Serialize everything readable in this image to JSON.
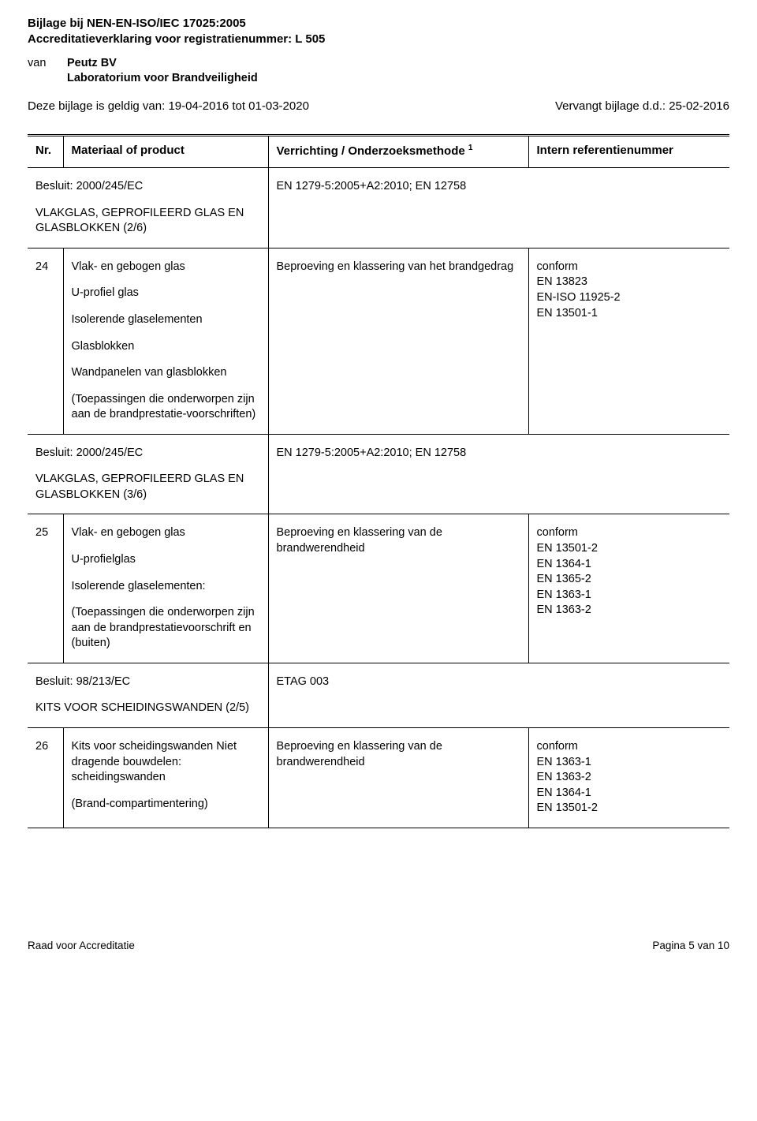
{
  "header": {
    "line1": "Bijlage bij NEN-EN-ISO/IEC 17025:2005",
    "line2": "Accreditatieverklaring voor registratienummer: L 505",
    "van_label": "van",
    "company": "Peutz BV",
    "lab": "Laboratorium voor Brandveiligheid",
    "validity": "Deze bijlage is geldig van: 19-04-2016 tot 01-03-2020",
    "replaces": "Vervangt bijlage d.d.: 25-02-2016"
  },
  "table": {
    "headers": {
      "nr": "Nr.",
      "material": "Materiaal of product",
      "method": "Verrichting / Onderzoeksmethode",
      "method_sup": "1",
      "ref": "Intern referentienummer"
    },
    "section1": {
      "left_line1": "Besluit: 2000/245/EC",
      "left_line2": "VLAKGLAS, GEPROFILEERD GLAS EN GLASBLOKKEN (2/6)",
      "right": "EN 1279-5:2005+A2:2010; EN 12758"
    },
    "row24": {
      "nr": "24",
      "mat1": "Vlak- en gebogen glas",
      "mat2": "U-profiel glas",
      "mat3": "Isolerende glaselementen",
      "mat4": "Glasblokken",
      "mat5": "Wandpanelen van glasblokken",
      "mat6": "(Toepassingen die onderworpen zijn aan de brandprestatie-voorschriften)",
      "method": "Beproeving en klassering van het brandgedrag",
      "ref1": "conform",
      "ref2": "EN 13823",
      "ref3": "EN-ISO 11925-2",
      "ref4": "EN 13501-1"
    },
    "section2": {
      "left_line1": "Besluit: 2000/245/EC",
      "left_line2": "VLAKGLAS, GEPROFILEERD GLAS EN GLASBLOKKEN (3/6)",
      "right": "EN 1279-5:2005+A2:2010; EN 12758"
    },
    "row25": {
      "nr": "25",
      "mat1": "Vlak- en gebogen glas",
      "mat2": "U-profielglas",
      "mat3": "Isolerende glaselementen:",
      "mat4": "(Toepassingen die onderworpen zijn aan de brandprestatievoorschrift en (buiten)",
      "method": "Beproeving en klassering van de brandwerendheid",
      "ref1": "conform",
      "ref2": "EN 13501-2",
      "ref3": "EN 1364-1",
      "ref4": "EN 1365-2",
      "ref5": "EN 1363-1",
      "ref6": "EN 1363-2"
    },
    "section3": {
      "left_line1": "Besluit: 98/213/EC",
      "left_line2": "KITS VOOR SCHEIDINGSWANDEN (2/5)",
      "right": "ETAG 003"
    },
    "row26": {
      "nr": "26",
      "mat1": "Kits voor scheidingswanden Niet dragende bouwdelen: scheidingswanden",
      "mat2": "(Brand-compartimentering)",
      "method": "Beproeving en klassering van de brandwerendheid",
      "ref1": "conform",
      "ref2": "EN 1363-1",
      "ref3": "EN 1363-2",
      "ref4": "EN 1364-1",
      "ref5": "EN 13501-2"
    }
  },
  "footer": {
    "left": "Raad voor Accreditatie",
    "right": "Pagina 5 van 10"
  }
}
